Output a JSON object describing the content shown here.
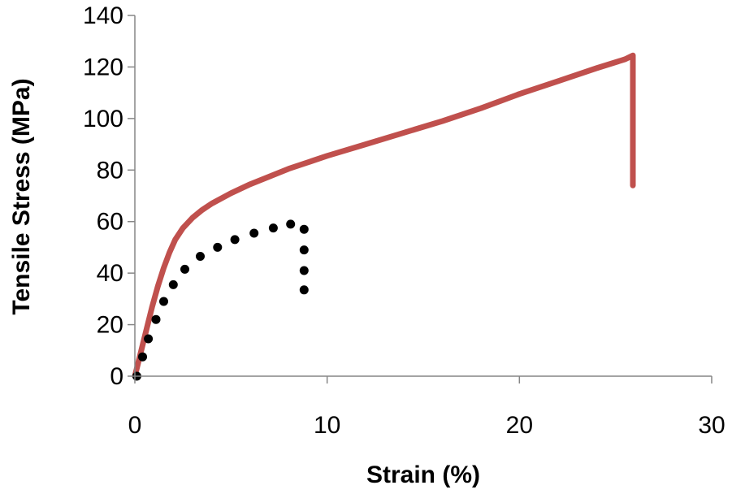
{
  "chart_data": {
    "type": "line",
    "title": "",
    "xlabel": "Strain (%)",
    "ylabel": "Tensile Stress (MPa)",
    "xlim": [
      0,
      30
    ],
    "ylim": [
      0,
      140
    ],
    "x_ticks": [
      0,
      10,
      20,
      30
    ],
    "y_ticks": [
      0,
      20,
      40,
      60,
      80,
      100,
      120,
      140
    ],
    "grid": false,
    "legend": "none",
    "colors": {
      "series_solid": "#c0504d",
      "series_dotted": "#000000",
      "axis": "#868686"
    },
    "series": [
      {
        "name": "solid",
        "style": "solid",
        "x": [
          0,
          0.3,
          0.6,
          0.9,
          1.2,
          1.5,
          1.8,
          2.1,
          2.5,
          3.0,
          3.5,
          4.0,
          5.0,
          6.0,
          7.0,
          8.0,
          9.0,
          10.0,
          12.0,
          14.0,
          16.0,
          18.0,
          20.0,
          22.0,
          24.0,
          25.5,
          25.9,
          25.9,
          25.9
        ],
        "y": [
          0,
          9,
          18,
          27,
          35,
          42,
          48,
          53,
          57.5,
          61.5,
          64.5,
          67,
          71,
          74.5,
          77.5,
          80.5,
          83,
          85.5,
          90,
          94.5,
          99,
          104,
          109.5,
          114.5,
          119.5,
          123,
          124.5,
          108,
          74
        ]
      },
      {
        "name": "dotted",
        "style": "dotted",
        "x": [
          0.1,
          0.4,
          0.7,
          1.1,
          1.5,
          2.0,
          2.6,
          3.4,
          4.3,
          5.2,
          6.2,
          7.2,
          8.1,
          8.8,
          8.8,
          8.8,
          8.8
        ],
        "y": [
          0,
          7.5,
          14.5,
          22,
          29,
          35.5,
          41.5,
          46.5,
          50,
          53,
          55.5,
          57.5,
          59,
          57,
          49,
          41,
          33.5
        ]
      }
    ]
  }
}
